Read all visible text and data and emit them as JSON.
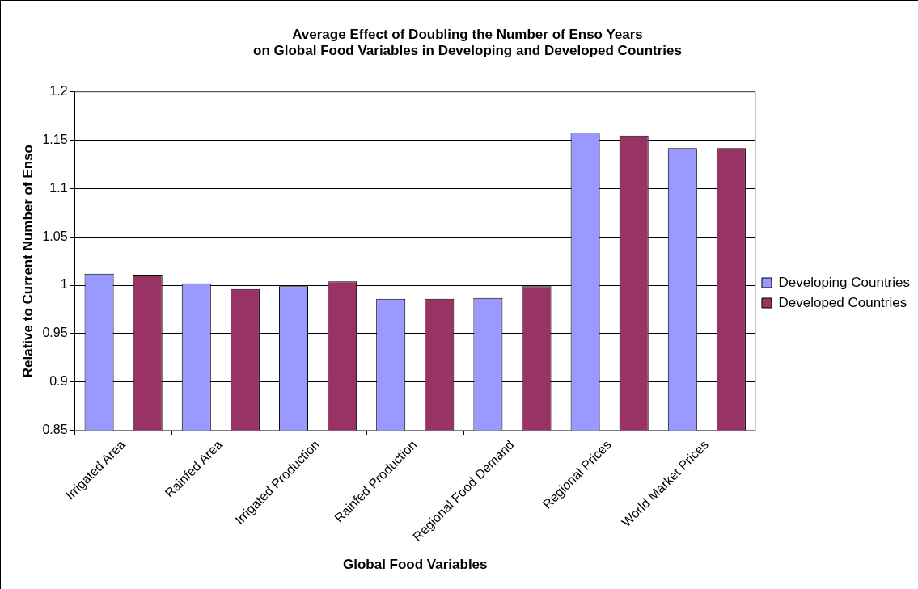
{
  "chart_data": {
    "type": "bar",
    "title": "Average Effect of Doubling the Number of Enso Years\non Global Food Variables in Developing and Developed Countries",
    "xlabel": "Global Food Variables",
    "ylabel": "Relative to Current Number of Enso",
    "categories": [
      "Irrigated Area",
      "Rainfed Area",
      "Irrigated Production",
      "Rainfed Production",
      "Regional Food Demand",
      "Regional Prices",
      "World Market Prices"
    ],
    "series": [
      {
        "name": "Developing Countries",
        "color": "#9999ff",
        "values": [
          1.012,
          1.002,
          0.999,
          0.986,
          0.987,
          1.158,
          1.142
        ]
      },
      {
        "name": "Developed Countries",
        "color": "#993366",
        "values": [
          1.011,
          0.996,
          1.004,
          0.986,
          0.999,
          1.155,
          1.142
        ]
      }
    ],
    "ylim": [
      0.85,
      1.2
    ],
    "yticks": [
      0.85,
      0.9,
      0.95,
      1,
      1.05,
      1.1,
      1.15,
      1.2
    ],
    "grid": "y",
    "legend": "right"
  }
}
